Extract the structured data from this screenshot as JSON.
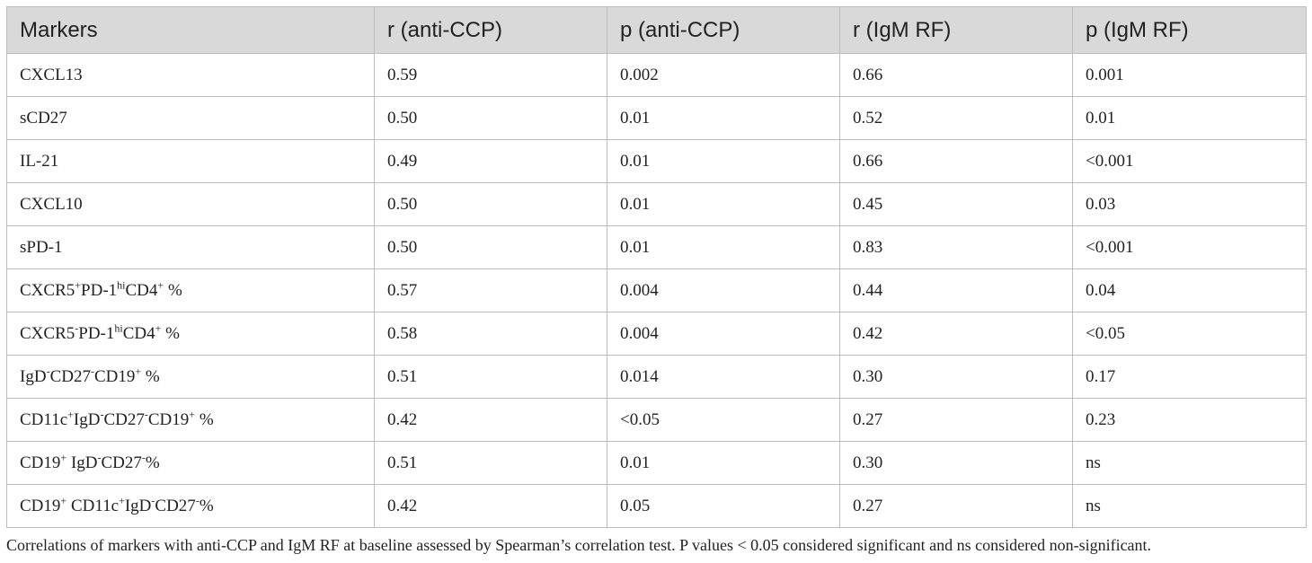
{
  "table": {
    "headers": [
      "Markers",
      "r (anti-CCP)",
      "p (anti-CCP)",
      "r (IgM RF)",
      "p (IgM RF)"
    ],
    "rows": [
      {
        "marker": [
          "CXCL13"
        ],
        "values": [
          "0.59",
          "0.002",
          "0.66",
          "0.001"
        ]
      },
      {
        "marker": [
          "sCD27"
        ],
        "values": [
          "0.50",
          "0.01",
          "0.52",
          "0.01"
        ]
      },
      {
        "marker": [
          "IL-21"
        ],
        "values": [
          "0.49",
          "0.01",
          "0.66",
          "<0.001"
        ]
      },
      {
        "marker": [
          "CXCL10"
        ],
        "values": [
          "0.50",
          "0.01",
          "0.45",
          "0.03"
        ]
      },
      {
        "marker": [
          "sPD-1"
        ],
        "values": [
          "0.50",
          "0.01",
          "0.83",
          "<0.001"
        ]
      },
      {
        "marker": [
          "CXCR5",
          "+",
          "PD-1",
          "hi",
          "CD4",
          "+",
          " %"
        ],
        "values": [
          "0.57",
          "0.004",
          "0.44",
          "0.04"
        ]
      },
      {
        "marker": [
          "CXCR5",
          "-",
          "PD-1",
          "hi",
          "CD4",
          "+",
          " %"
        ],
        "values": [
          "0.58",
          "0.004",
          "0.42",
          "<0.05"
        ]
      },
      {
        "marker": [
          "IgD",
          "-",
          "CD27",
          "-",
          "CD19",
          "+",
          " %"
        ],
        "values": [
          "0.51",
          "0.014",
          "0.30",
          "0.17"
        ]
      },
      {
        "marker": [
          "CD11c",
          "+",
          "IgD",
          "-",
          "CD27",
          "-",
          "CD19",
          "+",
          " %"
        ],
        "values": [
          "0.42",
          "<0.05",
          "0.27",
          "0.23"
        ]
      },
      {
        "marker": [
          "CD19",
          "+",
          " IgD",
          "-",
          "CD27",
          "-",
          "%"
        ],
        "values": [
          "0.51",
          "0.01",
          "0.30",
          "ns"
        ]
      },
      {
        "marker": [
          "CD19",
          "+",
          " CD11c",
          "+",
          "IgD",
          "-",
          "CD27",
          "-",
          "%"
        ],
        "values": [
          "0.42",
          "0.05",
          "0.27",
          "ns"
        ]
      }
    ]
  },
  "caption": "Correlations of markers with anti-CCP and IgM RF at baseline assessed by Spearman’s correlation test. P values < 0.05 considered significant and ns considered non-significant."
}
